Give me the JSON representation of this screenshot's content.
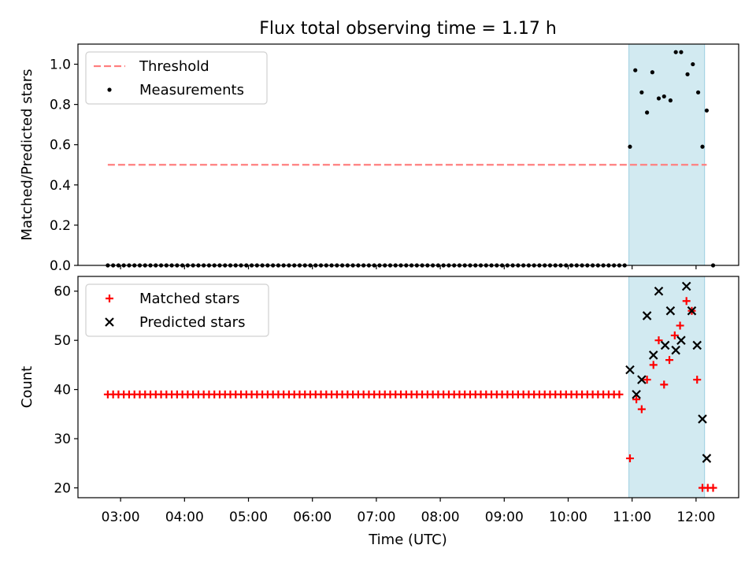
{
  "chart_data": [
    {
      "type": "scatter",
      "title": "Flux total observing time = 1.17 h",
      "xlabel": "",
      "ylabel": "Matched/Predicted stars",
      "xlim": [
        "02:20",
        "12:40"
      ],
      "ylim": [
        0,
        1.1
      ],
      "yticks": [
        0.0,
        0.2,
        0.4,
        0.6,
        0.8,
        1.0
      ],
      "ytick_labels": [
        "0.0",
        "0.2",
        "0.4",
        "0.6",
        "0.8",
        "1.0"
      ],
      "legend_position": "top-left",
      "highlight_span": {
        "start": "10:57",
        "end": "12:08",
        "color": "#add8e6"
      },
      "threshold": {
        "name": "Threshold",
        "value": 0.5,
        "x_start": "02:48",
        "x_end": "12:10",
        "color": "#ff7f7f",
        "style": "dashed"
      },
      "series": [
        {
          "name": "Measurements",
          "color": "#000000",
          "marker": "dot",
          "zero_run": {
            "start": "02:48",
            "step_minutes": 5,
            "count": 98
          },
          "points": [
            [
              "10:58",
              0.59
            ],
            [
              "11:03",
              0.97
            ],
            [
              "11:09",
              0.86
            ],
            [
              "11:14",
              0.76
            ],
            [
              "11:19",
              0.96
            ],
            [
              "11:25",
              0.83
            ],
            [
              "11:30",
              0.84
            ],
            [
              "11:36",
              0.82
            ],
            [
              "11:41",
              1.06
            ],
            [
              "11:46",
              1.06
            ],
            [
              "11:52",
              0.95
            ],
            [
              "11:57",
              1.0
            ],
            [
              "12:02",
              0.86
            ],
            [
              "12:06",
              0.59
            ],
            [
              "12:10",
              0.77
            ],
            [
              "12:16",
              0.0
            ]
          ]
        }
      ]
    },
    {
      "type": "scatter",
      "title": "",
      "xlabel": "Time (UTC)",
      "ylabel": "Count",
      "xlim": [
        "02:20",
        "12:40"
      ],
      "xticks": [
        "03:00",
        "04:00",
        "05:00",
        "06:00",
        "07:00",
        "08:00",
        "09:00",
        "10:00",
        "11:00",
        "12:00"
      ],
      "ylim": [
        18,
        63
      ],
      "yticks": [
        20,
        30,
        40,
        50,
        60
      ],
      "ytick_labels": [
        "20",
        "30",
        "40",
        "50",
        "60"
      ],
      "legend_position": "top-left",
      "highlight_span": {
        "start": "10:57",
        "end": "12:08",
        "color": "#add8e6"
      },
      "series": [
        {
          "name": "Matched stars",
          "color": "#ff0000",
          "marker": "plus",
          "constant_run": {
            "start": "02:48",
            "step_minutes": 5,
            "count": 97,
            "value": 39
          },
          "points": [
            [
              "10:58",
              26
            ],
            [
              "11:04",
              38
            ],
            [
              "11:09",
              36
            ],
            [
              "11:14",
              42
            ],
            [
              "11:20",
              45
            ],
            [
              "11:25",
              50
            ],
            [
              "11:30",
              41
            ],
            [
              "11:35",
              46
            ],
            [
              "11:40",
              51
            ],
            [
              "11:45",
              53
            ],
            [
              "11:51",
              58
            ],
            [
              "11:56",
              56
            ],
            [
              "12:01",
              42
            ],
            [
              "12:06",
              20
            ],
            [
              "12:11",
              20
            ],
            [
              "12:16",
              20
            ]
          ]
        },
        {
          "name": "Predicted stars",
          "color": "#000000",
          "marker": "x",
          "points": [
            [
              "10:58",
              44
            ],
            [
              "11:04",
              39
            ],
            [
              "11:09",
              42
            ],
            [
              "11:14",
              55
            ],
            [
              "11:20",
              47
            ],
            [
              "11:25",
              60
            ],
            [
              "11:31",
              49
            ],
            [
              "11:36",
              56
            ],
            [
              "11:41",
              48
            ],
            [
              "11:46",
              50
            ],
            [
              "11:51",
              61
            ],
            [
              "11:56",
              56
            ],
            [
              "12:01",
              49
            ],
            [
              "12:06",
              34
            ],
            [
              "12:10",
              26
            ]
          ]
        }
      ]
    }
  ]
}
